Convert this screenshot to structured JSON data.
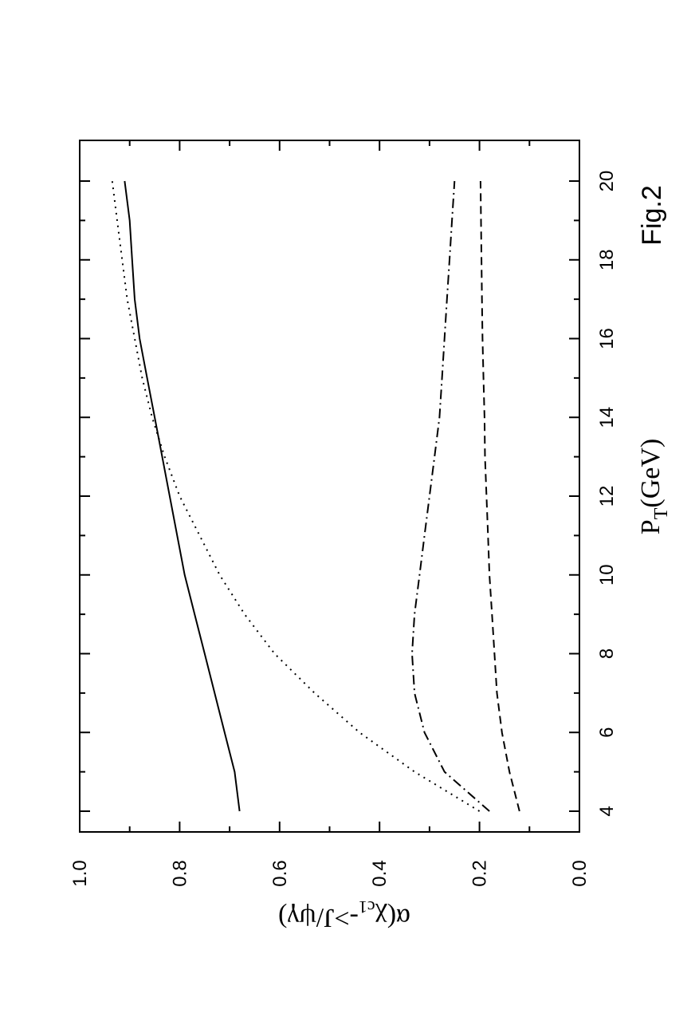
{
  "chart_data": {
    "type": "line",
    "orientation": "rotated 90 degrees counter-clockwise (page in landscape)",
    "xlabel": "P",
    "xlabel_sub": "T",
    "xlabel_unit": "(GeV)",
    "ylabel": "α(χ",
    "ylabel_sub": "c1",
    "ylabel_rest": "->J/ψγ)",
    "annotation": "Fig.2",
    "xlim": [
      3.5,
      21
    ],
    "ylim": [
      0.0,
      1.0
    ],
    "xticks": [
      4,
      6,
      8,
      10,
      12,
      14,
      16,
      18,
      20
    ],
    "xtick_labels": [
      "4",
      "6",
      "8",
      "10",
      "12",
      "14",
      "16",
      "18",
      "20"
    ],
    "yticks": [
      0.0,
      0.2,
      0.4,
      0.6,
      0.8,
      1.0
    ],
    "ytick_labels": [
      "0.0",
      "0.2",
      "0.4",
      "0.6",
      "0.8",
      "1.0"
    ],
    "grid": false,
    "series": [
      {
        "style": "solid",
        "x": [
          4,
          5,
          6,
          7,
          8,
          9,
          10,
          11,
          12,
          13,
          14,
          15,
          16,
          17,
          18,
          19,
          20
        ],
        "y": [
          0.68,
          0.69,
          0.71,
          0.73,
          0.75,
          0.77,
          0.79,
          0.805,
          0.82,
          0.835,
          0.85,
          0.865,
          0.88,
          0.89,
          0.895,
          0.9,
          0.91
        ]
      },
      {
        "style": "dotted",
        "x": [
          4,
          5,
          6,
          7,
          8,
          9,
          10,
          11,
          12,
          13,
          14,
          15,
          16,
          17,
          18,
          19,
          20
        ],
        "y": [
          0.2,
          0.33,
          0.44,
          0.53,
          0.61,
          0.67,
          0.72,
          0.76,
          0.8,
          0.83,
          0.855,
          0.875,
          0.89,
          0.905,
          0.915,
          0.925,
          0.935
        ]
      },
      {
        "style": "dash-dot",
        "x": [
          4,
          5,
          6,
          7,
          8,
          9,
          10,
          11,
          12,
          13,
          14,
          15,
          16,
          17,
          18,
          19,
          20
        ],
        "y": [
          0.18,
          0.27,
          0.31,
          0.33,
          0.335,
          0.33,
          0.32,
          0.31,
          0.3,
          0.29,
          0.28,
          0.275,
          0.27,
          0.265,
          0.26,
          0.255,
          0.25
        ]
      },
      {
        "style": "dashed",
        "x": [
          4,
          5,
          6,
          7,
          8,
          9,
          10,
          11,
          12,
          13,
          14,
          15,
          16,
          17,
          18,
          19,
          20
        ],
        "y": [
          0.12,
          0.14,
          0.155,
          0.165,
          0.17,
          0.175,
          0.18,
          0.183,
          0.186,
          0.189,
          0.19,
          0.192,
          0.194,
          0.195,
          0.196,
          0.197,
          0.198
        ]
      }
    ]
  }
}
